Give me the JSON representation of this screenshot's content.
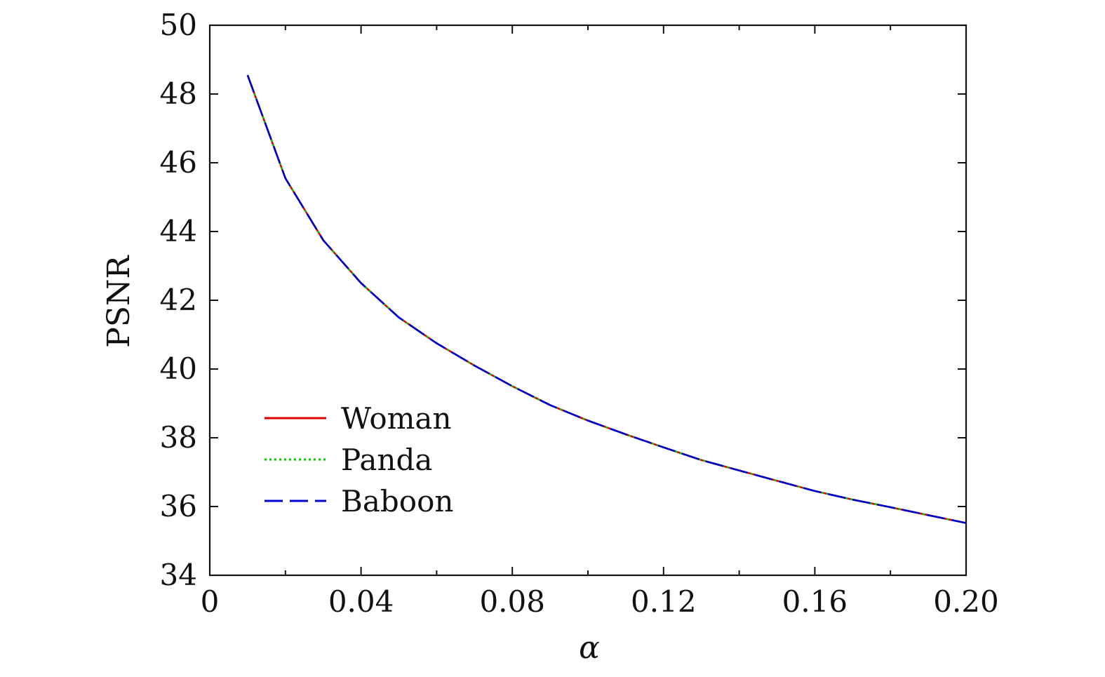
{
  "chart_data": {
    "type": "line",
    "title": "",
    "xlabel": "α",
    "ylabel": "PSNR",
    "xlim": [
      0,
      0.2
    ],
    "ylim": [
      34,
      50
    ],
    "xticks": [
      0,
      0.04,
      0.08,
      0.12,
      0.16,
      0.2
    ],
    "xtick_labels": [
      "0",
      "0.04",
      "0.08",
      "0.12",
      "0.16",
      "0.20"
    ],
    "yticks": [
      34,
      36,
      38,
      40,
      42,
      44,
      46,
      48,
      50
    ],
    "ytick_labels": [
      "34",
      "36",
      "38",
      "40",
      "42",
      "44",
      "46",
      "48",
      "50"
    ],
    "grid": false,
    "legend_position": "lower-left",
    "x": [
      0.01,
      0.02,
      0.03,
      0.04,
      0.05,
      0.06,
      0.07,
      0.08,
      0.09,
      0.1,
      0.11,
      0.12,
      0.13,
      0.14,
      0.15,
      0.16,
      0.17,
      0.18,
      0.19,
      0.2
    ],
    "series": [
      {
        "name": "Woman",
        "color": "#dd0000",
        "style": "solid",
        "values": [
          48.55,
          45.55,
          43.75,
          42.5,
          41.5,
          40.75,
          40.1,
          39.5,
          38.95,
          38.5,
          38.1,
          37.72,
          37.35,
          37.05,
          36.75,
          36.45,
          36.2,
          35.98,
          35.75,
          35.52
        ]
      },
      {
        "name": "Panda",
        "color": "#00cc00",
        "style": "dotted",
        "values": [
          48.55,
          45.55,
          43.75,
          42.5,
          41.5,
          40.75,
          40.1,
          39.5,
          38.95,
          38.5,
          38.1,
          37.72,
          37.35,
          37.05,
          36.75,
          36.45,
          36.2,
          35.98,
          35.75,
          35.52
        ]
      },
      {
        "name": "Baboon",
        "color": "#0000cc",
        "style": "dashed",
        "values": [
          48.55,
          45.55,
          43.75,
          42.5,
          41.5,
          40.75,
          40.1,
          39.5,
          38.95,
          38.5,
          38.1,
          37.72,
          37.35,
          37.05,
          36.75,
          36.45,
          36.2,
          35.98,
          35.75,
          35.52
        ]
      }
    ]
  }
}
